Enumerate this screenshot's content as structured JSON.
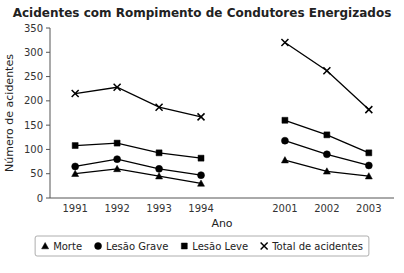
{
  "chart_data": {
    "type": "line",
    "title": "Acidentes com Rompimento de Condutores Energizados",
    "xlabel": "Ano",
    "ylabel": "Número de acidentes",
    "categories": [
      "1991",
      "1992",
      "1993",
      "1994",
      null,
      "2001",
      "2002",
      "2003"
    ],
    "series": [
      {
        "name": "Morte",
        "color": "#000000",
        "marker": "triangle",
        "values": [
          50,
          60,
          45,
          30,
          null,
          78,
          55,
          45
        ]
      },
      {
        "name": "Lesão Grave",
        "color": "#000000",
        "marker": "circle",
        "values": [
          65,
          80,
          60,
          47,
          null,
          118,
          90,
          67
        ]
      },
      {
        "name": "Lesão Leve",
        "color": "#000000",
        "marker": "square",
        "values": [
          108,
          113,
          93,
          82,
          null,
          160,
          130,
          93
        ]
      },
      {
        "name": "Total de acidentes",
        "color": "#000000",
        "marker": "x",
        "values": [
          215,
          228,
          187,
          167,
          null,
          320,
          262,
          182
        ]
      }
    ],
    "ylim": [
      0,
      350
    ],
    "yticks": [
      0,
      50,
      100,
      150,
      200,
      250,
      300,
      350
    ],
    "grid": false,
    "legend": "bottom"
  }
}
